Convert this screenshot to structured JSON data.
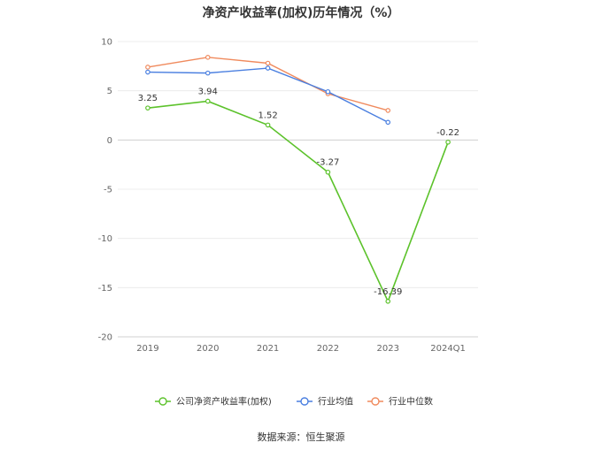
{
  "title": "净资产收益率(加权)历年情况（%）",
  "source": "数据来源：恒生聚源",
  "chart_data": {
    "type": "line",
    "categories": [
      "2019",
      "2020",
      "2021",
      "2022",
      "2023",
      "2024Q1"
    ],
    "ylim": [
      -20,
      10
    ],
    "yticks": [
      10,
      5,
      0,
      -5,
      -10,
      -15,
      -20
    ],
    "grid": true,
    "legend_position": "bottom",
    "series": [
      {
        "name": "公司净资产收益率(加权)",
        "color": "#5cc22b",
        "values": [
          3.25,
          3.94,
          1.52,
          -3.27,
          -16.39,
          -0.22
        ],
        "labels": [
          "3.25",
          "3.94",
          "1.52",
          "-3.27",
          "-16.39",
          "-0.22"
        ]
      },
      {
        "name": "行业均值",
        "color": "#4a7fe0",
        "values": [
          6.9,
          6.8,
          7.3,
          4.9,
          1.8,
          null
        ]
      },
      {
        "name": "行业中位数",
        "color": "#f08a5d",
        "values": [
          7.4,
          8.4,
          7.8,
          4.7,
          3.0,
          null
        ]
      }
    ]
  }
}
